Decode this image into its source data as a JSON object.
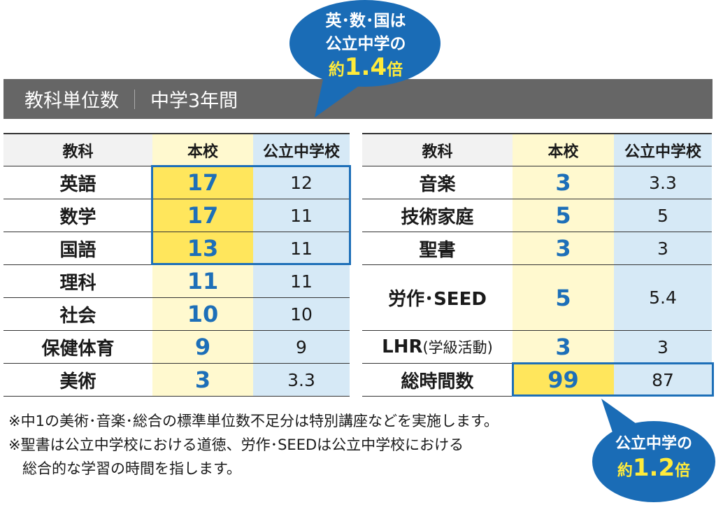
{
  "title": "教科単位数",
  "subtitle": "中学3年間",
  "headers": {
    "subject": "教科",
    "honko": "本校",
    "public": "公立中学校"
  },
  "left_rows": [
    {
      "subject": "英語",
      "honko": "17",
      "public": "12"
    },
    {
      "subject": "数学",
      "honko": "17",
      "public": "11"
    },
    {
      "subject": "国語",
      "honko": "13",
      "public": "11"
    },
    {
      "subject": "理科",
      "honko": "11",
      "public": "11"
    },
    {
      "subject": "社会",
      "honko": "10",
      "public": "10"
    },
    {
      "subject": "保健体育",
      "honko": "9",
      "public": "9"
    },
    {
      "subject": "美術",
      "honko": "3",
      "public": "3.3"
    }
  ],
  "right_rows": [
    {
      "subject": "音楽",
      "honko": "3",
      "public": "3.3"
    },
    {
      "subject": "技術家庭",
      "honko": "5",
      "public": "5"
    },
    {
      "subject": "聖書",
      "honko": "3",
      "public": "3"
    },
    {
      "subject": "労作･SEED",
      "honko": "5",
      "public": "5.4"
    },
    {
      "subject": "LHR",
      "subject_note": "(学級活動)",
      "honko": "3",
      "public": "3"
    },
    {
      "subject": "総時間数",
      "honko": "99",
      "public": "87"
    }
  ],
  "bubble_top": {
    "line1": "英･数･国は",
    "line2": "公立中学の",
    "prefix": "約",
    "value": "1.4",
    "suffix": "倍"
  },
  "bubble_bottom": {
    "line1": "公立中学の",
    "prefix": "約",
    "value": "1.2",
    "suffix": "倍"
  },
  "notes": [
    "※中1の美術･音楽･総合の標準単位数不足分は特別講座などを実施します。",
    "※聖書は公立中学校における道徳、労作･SEEDは公立中学校における",
    "総合的な学習の時間を指します。"
  ],
  "colors": {
    "accent": "#1d6fb8",
    "honko_bg": "#fff9cf",
    "highlight": "#ffe65c",
    "public_bg": "#d6e9f6",
    "banner": "#666666"
  }
}
